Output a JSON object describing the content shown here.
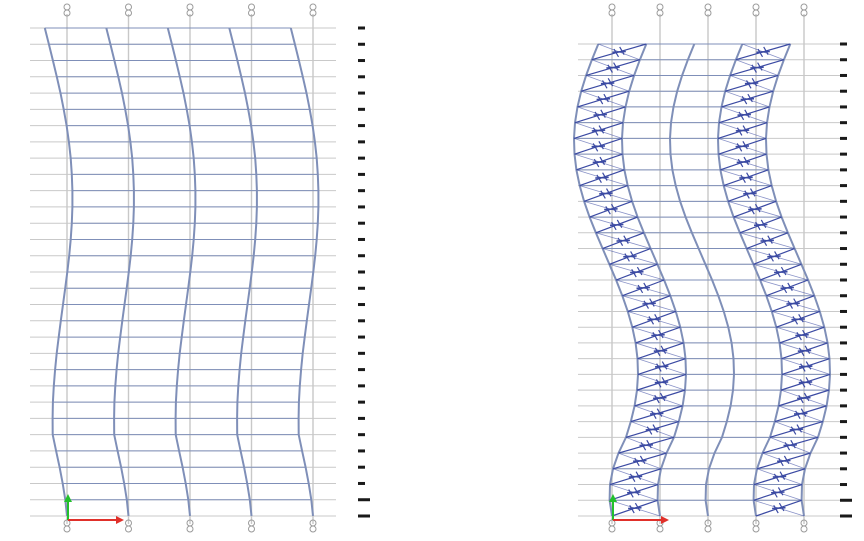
{
  "colors": {
    "background": "#ffffff",
    "grid_axis": "#c8c8c8",
    "floor_line": "#c9c9c9",
    "deformed_frame": "#7f8fb8",
    "brace_symbol": "#3b4aa3",
    "story_tick": "#1a1a1a",
    "axis_y_green": "#22c02c",
    "axis_x_red": "#e0302a"
  },
  "diagrams": [
    {
      "name": "frame-without-braces",
      "column_count": 5,
      "floor_count": 31,
      "braced_bays": []
    },
    {
      "name": "frame-with-braces",
      "column_count": 5,
      "floor_count": 31,
      "braced_bays": [
        1,
        4
      ]
    }
  ],
  "icons": {
    "grid_bubble": "grid-axis-bubble-icon",
    "brace": "cross-brace-icon",
    "story_marker": "story-level-marker-icon",
    "coordinate_axes": "coordinate-axes-icon"
  }
}
